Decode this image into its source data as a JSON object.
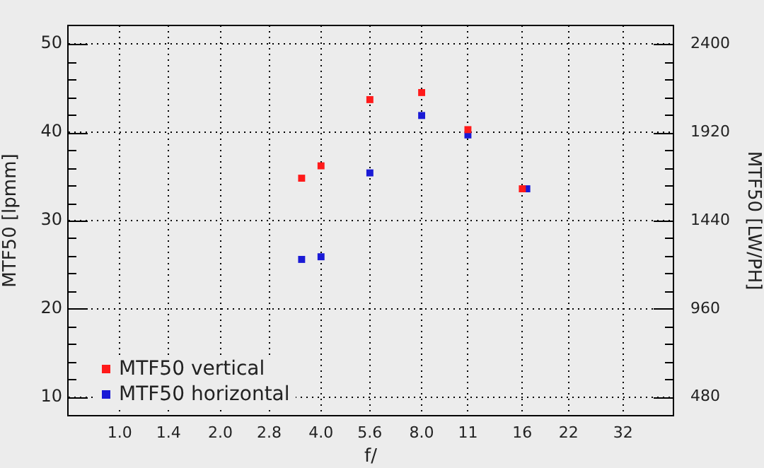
{
  "chart_data": {
    "type": "scatter",
    "xlabel": "f/",
    "ylabel": "MTF50 [lpmm]",
    "y2label": "MTF50 [LW/PH]",
    "log": "x",
    "marker": "square",
    "grid": true,
    "legend": "bottom left",
    "xlim": [
      0.71,
      45.3
    ],
    "xticks": [
      {
        "value": 1,
        "label": "1.0"
      },
      1.4,
      {
        "value": 2,
        "label": "2.0"
      },
      2.8,
      {
        "value": 4,
        "label": "4.0"
      },
      5.6,
      {
        "value": 8,
        "label": "8.0"
      },
      11,
      16,
      22,
      32
    ],
    "ylim": [
      7.9,
      52.1
    ],
    "yticks": [
      10,
      {
        "value": 12,
        "label": null
      },
      {
        "value": 14,
        "label": null
      },
      {
        "value": 16,
        "label": null
      },
      {
        "value": 18,
        "label": null
      },
      20,
      {
        "value": 22,
        "label": null
      },
      {
        "value": 24,
        "label": null
      },
      {
        "value": 26,
        "label": null
      },
      {
        "value": 28,
        "label": null
      },
      30,
      {
        "value": 32,
        "label": null
      },
      {
        "value": 34,
        "label": null
      },
      {
        "value": 36,
        "label": null
      },
      {
        "value": 38,
        "label": null
      },
      40,
      {
        "value": 42,
        "label": null
      },
      {
        "value": 44,
        "label": null
      },
      {
        "value": 46,
        "label": null
      },
      {
        "value": 48,
        "label": null
      },
      50
    ],
    "y2lim": [
      379,
      2501
    ],
    "y2ticks": [
      480,
      {
        "value": 576,
        "label": null
      },
      {
        "value": 672,
        "label": null
      },
      {
        "value": 768,
        "label": null
      },
      {
        "value": 864,
        "label": null
      },
      960,
      {
        "value": 1056,
        "label": null
      },
      {
        "value": 1152,
        "label": null
      },
      {
        "value": 1248,
        "label": null
      },
      {
        "value": 1344,
        "label": null
      },
      1440,
      {
        "value": 1536,
        "label": null
      },
      {
        "value": 1632,
        "label": null
      },
      {
        "value": 1728,
        "label": null
      },
      {
        "value": 1824,
        "label": null
      },
      1920,
      {
        "value": 2016,
        "label": null
      },
      {
        "value": 2112,
        "label": null
      },
      {
        "value": 2208,
        "label": null
      },
      {
        "value": 2304,
        "label": null
      },
      2400
    ],
    "series": [
      {
        "name": "MTF50 vertical",
        "color": "#ff1a1a",
        "x": [
          3.5,
          4,
          5.6,
          8,
          11,
          16
        ],
        "values": [
          34.8,
          36.2,
          43.7,
          44.5,
          40.3,
          33.6
        ]
      },
      {
        "name": "MTF50 horizontal",
        "color": "#1a1ad6",
        "x": [
          3.5,
          4,
          5.6,
          8,
          11,
          16.5
        ],
        "values": [
          25.6,
          25.9,
          35.4,
          41.9,
          39.7,
          33.6
        ]
      }
    ]
  }
}
